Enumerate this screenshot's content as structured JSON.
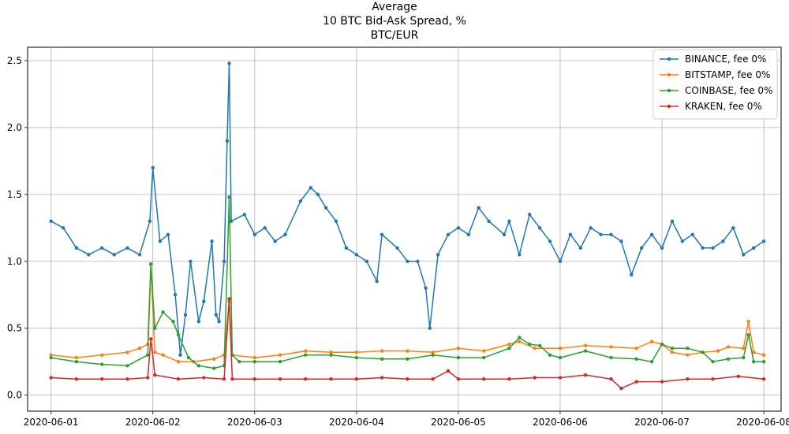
{
  "chart_data": {
    "type": "line",
    "title": "Average",
    "subtitle": "10 BTC Bid-Ask Spread, %",
    "subtitle2": "BTC/EUR",
    "xlabel": "",
    "ylabel": "",
    "x_ticks": [
      "2020-06-01",
      "2020-06-02",
      "2020-06-03",
      "2020-06-04",
      "2020-06-05",
      "2020-06-06",
      "2020-06-07",
      "2020-06-08"
    ],
    "y_ticks": [
      "0.0",
      "0.5",
      "1.0",
      "1.5",
      "2.0",
      "2.5"
    ],
    "ylim": [
      -0.12,
      2.6
    ],
    "xlim_days": [
      -0.23,
      7.17
    ],
    "grid": true,
    "legend_position": "top-right",
    "series": [
      {
        "name": "BINANCE, fee 0%",
        "color": "#1f77b4",
        "points": [
          [
            0.0,
            1.3
          ],
          [
            0.12,
            1.25
          ],
          [
            0.25,
            1.1
          ],
          [
            0.37,
            1.05
          ],
          [
            0.5,
            1.1
          ],
          [
            0.62,
            1.05
          ],
          [
            0.75,
            1.1
          ],
          [
            0.87,
            1.05
          ],
          [
            0.97,
            1.3
          ],
          [
            1.0,
            1.7
          ],
          [
            1.07,
            1.15
          ],
          [
            1.15,
            1.2
          ],
          [
            1.22,
            0.75
          ],
          [
            1.27,
            0.3
          ],
          [
            1.32,
            0.6
          ],
          [
            1.37,
            1.0
          ],
          [
            1.45,
            0.55
          ],
          [
            1.5,
            0.7
          ],
          [
            1.58,
            1.15
          ],
          [
            1.62,
            0.6
          ],
          [
            1.65,
            0.55
          ],
          [
            1.7,
            1.0
          ],
          [
            1.73,
            1.9
          ],
          [
            1.75,
            2.48
          ],
          [
            1.77,
            1.3
          ],
          [
            1.9,
            1.35
          ],
          [
            2.0,
            1.2
          ],
          [
            2.1,
            1.25
          ],
          [
            2.2,
            1.15
          ],
          [
            2.3,
            1.2
          ],
          [
            2.45,
            1.45
          ],
          [
            2.55,
            1.55
          ],
          [
            2.62,
            1.5
          ],
          [
            2.7,
            1.4
          ],
          [
            2.8,
            1.3
          ],
          [
            2.9,
            1.1
          ],
          [
            3.0,
            1.05
          ],
          [
            3.1,
            1.0
          ],
          [
            3.2,
            0.85
          ],
          [
            3.25,
            1.2
          ],
          [
            3.4,
            1.1
          ],
          [
            3.5,
            1.0
          ],
          [
            3.6,
            1.0
          ],
          [
            3.68,
            0.8
          ],
          [
            3.72,
            0.5
          ],
          [
            3.8,
            1.05
          ],
          [
            3.9,
            1.2
          ],
          [
            4.0,
            1.25
          ],
          [
            4.1,
            1.2
          ],
          [
            4.2,
            1.4
          ],
          [
            4.3,
            1.3
          ],
          [
            4.45,
            1.2
          ],
          [
            4.5,
            1.3
          ],
          [
            4.6,
            1.05
          ],
          [
            4.7,
            1.35
          ],
          [
            4.8,
            1.25
          ],
          [
            4.9,
            1.15
          ],
          [
            5.0,
            1.0
          ],
          [
            5.1,
            1.2
          ],
          [
            5.2,
            1.1
          ],
          [
            5.3,
            1.25
          ],
          [
            5.4,
            1.2
          ],
          [
            5.5,
            1.2
          ],
          [
            5.6,
            1.15
          ],
          [
            5.7,
            0.9
          ],
          [
            5.8,
            1.1
          ],
          [
            5.9,
            1.2
          ],
          [
            6.0,
            1.1
          ],
          [
            6.1,
            1.3
          ],
          [
            6.2,
            1.15
          ],
          [
            6.3,
            1.2
          ],
          [
            6.4,
            1.1
          ],
          [
            6.5,
            1.1
          ],
          [
            6.6,
            1.15
          ],
          [
            6.7,
            1.25
          ],
          [
            6.8,
            1.05
          ],
          [
            6.9,
            1.1
          ],
          [
            7.0,
            1.15
          ]
        ]
      },
      {
        "name": "BITSTAMP, fee 0%",
        "color": "#ff7f0e",
        "points": [
          [
            0.0,
            0.3
          ],
          [
            0.25,
            0.28
          ],
          [
            0.5,
            0.3
          ],
          [
            0.75,
            0.32
          ],
          [
            0.87,
            0.35
          ],
          [
            0.95,
            0.38
          ],
          [
            0.98,
            0.98
          ],
          [
            1.02,
            0.32
          ],
          [
            1.1,
            0.3
          ],
          [
            1.25,
            0.25
          ],
          [
            1.4,
            0.25
          ],
          [
            1.6,
            0.27
          ],
          [
            1.7,
            0.3
          ],
          [
            1.75,
            0.7
          ],
          [
            1.78,
            0.3
          ],
          [
            2.0,
            0.28
          ],
          [
            2.25,
            0.3
          ],
          [
            2.5,
            0.33
          ],
          [
            2.75,
            0.32
          ],
          [
            3.0,
            0.32
          ],
          [
            3.25,
            0.33
          ],
          [
            3.5,
            0.33
          ],
          [
            3.75,
            0.32
          ],
          [
            4.0,
            0.35
          ],
          [
            4.25,
            0.33
          ],
          [
            4.5,
            0.38
          ],
          [
            4.6,
            0.4
          ],
          [
            4.75,
            0.35
          ],
          [
            5.0,
            0.35
          ],
          [
            5.25,
            0.37
          ],
          [
            5.5,
            0.36
          ],
          [
            5.75,
            0.35
          ],
          [
            5.9,
            0.4
          ],
          [
            6.0,
            0.38
          ],
          [
            6.1,
            0.32
          ],
          [
            6.25,
            0.3
          ],
          [
            6.4,
            0.32
          ],
          [
            6.55,
            0.33
          ],
          [
            6.65,
            0.36
          ],
          [
            6.8,
            0.35
          ],
          [
            6.85,
            0.55
          ],
          [
            6.9,
            0.32
          ],
          [
            7.0,
            0.3
          ]
        ]
      },
      {
        "name": "COINBASE, fee 0%",
        "color": "#2ca02c",
        "points": [
          [
            0.0,
            0.28
          ],
          [
            0.25,
            0.25
          ],
          [
            0.5,
            0.23
          ],
          [
            0.75,
            0.22
          ],
          [
            0.95,
            0.3
          ],
          [
            0.98,
            0.98
          ],
          [
            1.02,
            0.5
          ],
          [
            1.1,
            0.62
          ],
          [
            1.2,
            0.55
          ],
          [
            1.25,
            0.45
          ],
          [
            1.35,
            0.28
          ],
          [
            1.45,
            0.22
          ],
          [
            1.6,
            0.2
          ],
          [
            1.7,
            0.22
          ],
          [
            1.75,
            1.48
          ],
          [
            1.78,
            0.3
          ],
          [
            1.85,
            0.25
          ],
          [
            2.0,
            0.25
          ],
          [
            2.25,
            0.25
          ],
          [
            2.5,
            0.3
          ],
          [
            2.75,
            0.3
          ],
          [
            3.0,
            0.28
          ],
          [
            3.25,
            0.27
          ],
          [
            3.5,
            0.27
          ],
          [
            3.75,
            0.3
          ],
          [
            4.0,
            0.28
          ],
          [
            4.25,
            0.28
          ],
          [
            4.5,
            0.35
          ],
          [
            4.6,
            0.43
          ],
          [
            4.7,
            0.38
          ],
          [
            4.8,
            0.37
          ],
          [
            4.9,
            0.3
          ],
          [
            5.0,
            0.28
          ],
          [
            5.25,
            0.33
          ],
          [
            5.5,
            0.28
          ],
          [
            5.75,
            0.27
          ],
          [
            5.9,
            0.25
          ],
          [
            6.0,
            0.38
          ],
          [
            6.1,
            0.35
          ],
          [
            6.25,
            0.35
          ],
          [
            6.4,
            0.32
          ],
          [
            6.5,
            0.25
          ],
          [
            6.65,
            0.27
          ],
          [
            6.8,
            0.28
          ],
          [
            6.85,
            0.45
          ],
          [
            6.9,
            0.25
          ],
          [
            7.0,
            0.25
          ]
        ]
      },
      {
        "name": "KRAKEN, fee 0%",
        "color": "#d62728",
        "points": [
          [
            0.0,
            0.13
          ],
          [
            0.25,
            0.12
          ],
          [
            0.5,
            0.12
          ],
          [
            0.75,
            0.12
          ],
          [
            0.95,
            0.13
          ],
          [
            0.98,
            0.42
          ],
          [
            1.02,
            0.15
          ],
          [
            1.25,
            0.12
          ],
          [
            1.5,
            0.13
          ],
          [
            1.7,
            0.12
          ],
          [
            1.75,
            0.72
          ],
          [
            1.78,
            0.12
          ],
          [
            2.0,
            0.12
          ],
          [
            2.25,
            0.12
          ],
          [
            2.5,
            0.12
          ],
          [
            2.75,
            0.12
          ],
          [
            3.0,
            0.12
          ],
          [
            3.25,
            0.13
          ],
          [
            3.5,
            0.12
          ],
          [
            3.75,
            0.12
          ],
          [
            3.9,
            0.18
          ],
          [
            4.0,
            0.12
          ],
          [
            4.25,
            0.12
          ],
          [
            4.5,
            0.12
          ],
          [
            4.75,
            0.13
          ],
          [
            5.0,
            0.13
          ],
          [
            5.25,
            0.15
          ],
          [
            5.5,
            0.12
          ],
          [
            5.6,
            0.05
          ],
          [
            5.75,
            0.1
          ],
          [
            6.0,
            0.1
          ],
          [
            6.25,
            0.12
          ],
          [
            6.5,
            0.12
          ],
          [
            6.75,
            0.14
          ],
          [
            7.0,
            0.12
          ]
        ]
      }
    ]
  }
}
